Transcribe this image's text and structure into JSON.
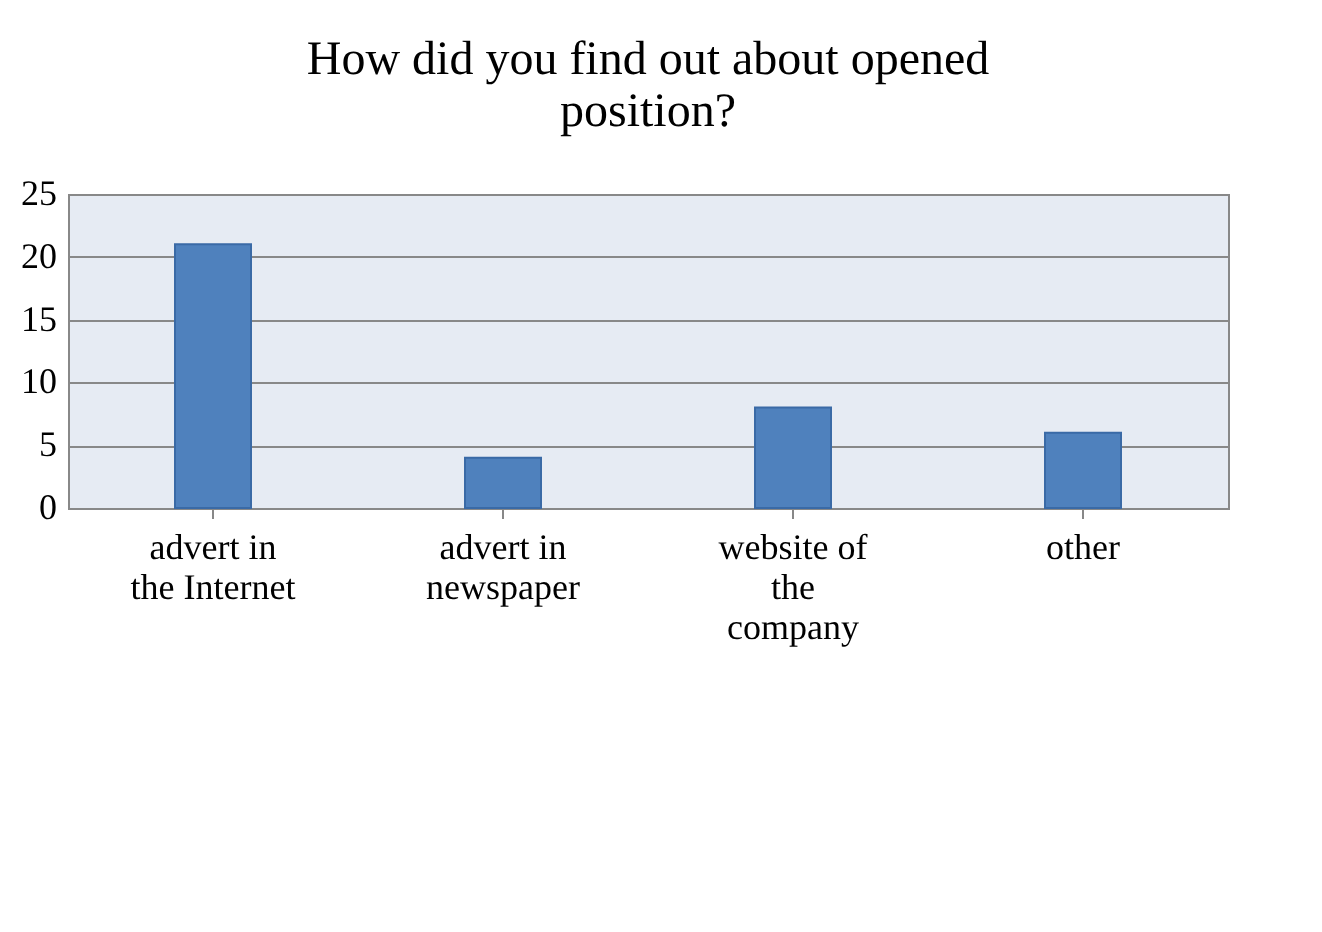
{
  "chart_data": {
    "type": "bar",
    "title": "How did you find out about opened position?",
    "categories": [
      "advert in\nthe Internet",
      "advert in\nnewspaper",
      "website of\nthe\ncompany",
      "other"
    ],
    "values": [
      21,
      4,
      8,
      6
    ],
    "color": "#4f81bd",
    "ylim": [
      0,
      25
    ],
    "yticks": [
      0,
      5,
      10,
      15,
      20,
      25
    ],
    "grid": "y"
  }
}
